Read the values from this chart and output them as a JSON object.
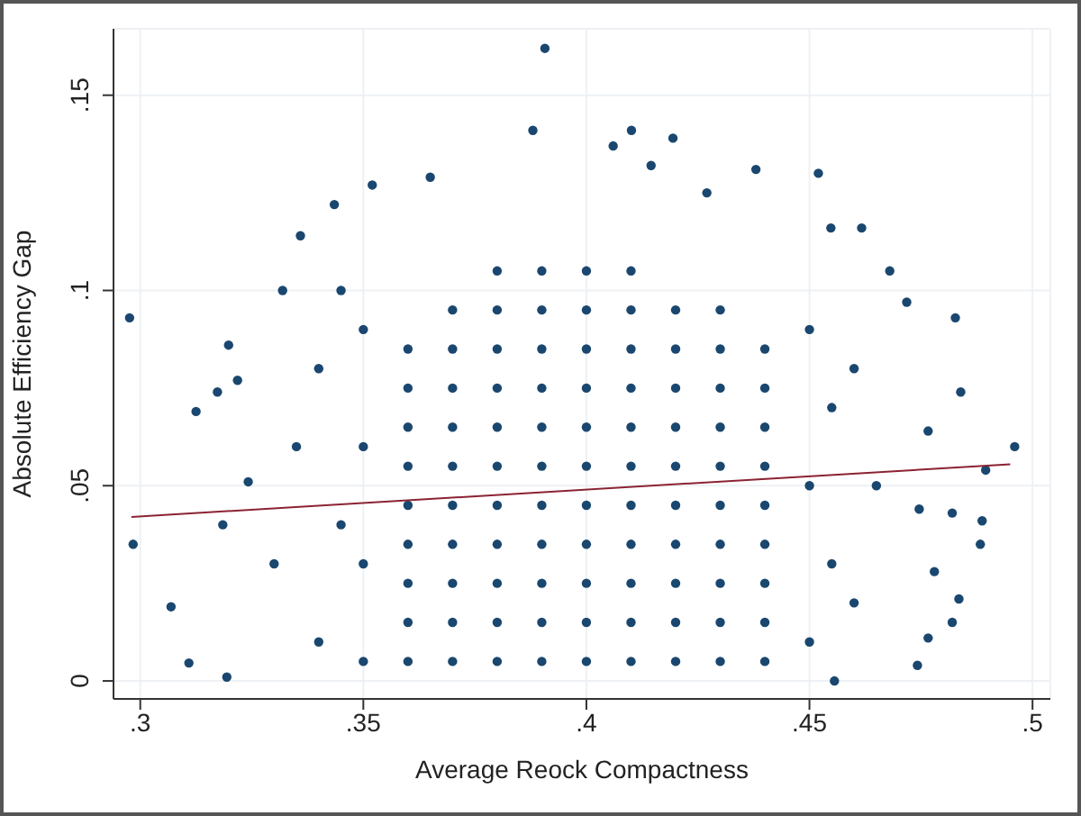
{
  "chart_data": {
    "type": "scatter",
    "xlabel": "Average Reock Compactness",
    "ylabel": "Absolute Efficiency Gap",
    "xlim": [
      0.294,
      0.504
    ],
    "ylim": [
      -0.0046,
      0.167
    ],
    "xticks": [
      {
        "value": 0.3,
        "label": ".3"
      },
      {
        "value": 0.35,
        "label": ".35"
      },
      {
        "value": 0.4,
        "label": ".4"
      },
      {
        "value": 0.45,
        "label": ".45"
      },
      {
        "value": 0.5,
        "label": ".5"
      }
    ],
    "yticks": [
      0,
      {
        "value": 0.05,
        "label": ".05"
      },
      {
        "value": 0.1,
        "label": ".1"
      },
      {
        "value": 0.15,
        "label": ".15"
      }
    ],
    "grid": true,
    "legend": false,
    "marker": "circle",
    "series": [
      {
        "color": "#1a476f",
        "x": [
          0.2976,
          0.2984,
          0.3069,
          0.3109,
          0.3198,
          0.3173,
          0.3125,
          0.3185,
          0.3218,
          0.3194,
          0.3242,
          0.3319,
          0.3359,
          0.3435,
          0.352,
          0.365,
          0.388,
          0.3907,
          0.4101,
          0.4194,
          0.406,
          0.4145,
          0.438,
          0.452,
          0.427,
          0.4548,
          0.4617,
          0.468,
          0.4718,
          0.4827,
          0.4839,
          0.496,
          0.4895,
          0.4883,
          0.4887,
          0.482,
          0.4835,
          0.482,
          0.4742,
          0.4556,
          0.4766,
          0.478,
          0.4746,
          0.4766,
          0.33,
          0.335,
          0.34,
          0.34,
          0.345,
          0.345,
          0.35,
          0.35,
          0.35,
          0.35,
          0.45,
          0.45,
          0.45,
          0.455,
          0.455,
          0.46,
          0.46,
          0.465,
          0.36,
          0.36,
          0.36,
          0.36,
          0.36,
          0.36,
          0.36,
          0.36,
          0.36,
          0.37,
          0.37,
          0.37,
          0.37,
          0.37,
          0.37,
          0.37,
          0.37,
          0.37,
          0.37,
          0.38,
          0.38,
          0.38,
          0.38,
          0.38,
          0.38,
          0.38,
          0.38,
          0.38,
          0.38,
          0.38,
          0.39,
          0.39,
          0.39,
          0.39,
          0.39,
          0.39,
          0.39,
          0.39,
          0.39,
          0.39,
          0.39,
          0.4,
          0.4,
          0.4,
          0.4,
          0.4,
          0.4,
          0.4,
          0.4,
          0.4,
          0.4,
          0.4,
          0.41,
          0.41,
          0.41,
          0.41,
          0.41,
          0.41,
          0.41,
          0.41,
          0.41,
          0.41,
          0.41,
          0.42,
          0.42,
          0.42,
          0.42,
          0.42,
          0.42,
          0.42,
          0.42,
          0.42,
          0.42,
          0.43,
          0.43,
          0.43,
          0.43,
          0.43,
          0.43,
          0.43,
          0.43,
          0.43,
          0.43,
          0.44,
          0.44,
          0.44,
          0.44,
          0.44,
          0.44,
          0.44,
          0.44,
          0.44
        ],
        "values": [
          0.093,
          0.035,
          0.019,
          0.0046,
          0.086,
          0.074,
          0.069,
          0.04,
          0.077,
          0.001,
          0.051,
          0.1,
          0.114,
          0.122,
          0.127,
          0.129,
          0.141,
          0.162,
          0.141,
          0.139,
          0.137,
          0.132,
          0.131,
          0.13,
          0.125,
          0.116,
          0.116,
          0.105,
          0.097,
          0.093,
          0.074,
          0.06,
          0.054,
          0.035,
          0.041,
          0.043,
          0.021,
          0.015,
          0.004,
          0.0,
          0.011,
          0.028,
          0.044,
          0.064,
          0.03,
          0.06,
          0.01,
          0.08,
          0.04,
          0.1,
          0.005,
          0.03,
          0.06,
          0.09,
          0.01,
          0.05,
          0.09,
          0.03,
          0.07,
          0.02,
          0.08,
          0.05,
          0.005,
          0.015,
          0.025,
          0.035,
          0.045,
          0.055,
          0.065,
          0.075,
          0.085,
          0.005,
          0.015,
          0.025,
          0.035,
          0.045,
          0.055,
          0.065,
          0.075,
          0.085,
          0.095,
          0.005,
          0.015,
          0.025,
          0.035,
          0.045,
          0.055,
          0.065,
          0.075,
          0.085,
          0.095,
          0.105,
          0.005,
          0.015,
          0.025,
          0.035,
          0.045,
          0.055,
          0.065,
          0.075,
          0.085,
          0.095,
          0.105,
          0.005,
          0.015,
          0.025,
          0.035,
          0.045,
          0.055,
          0.065,
          0.075,
          0.085,
          0.095,
          0.105,
          0.005,
          0.015,
          0.025,
          0.035,
          0.045,
          0.055,
          0.065,
          0.075,
          0.085,
          0.095,
          0.105,
          0.005,
          0.015,
          0.025,
          0.035,
          0.045,
          0.055,
          0.065,
          0.075,
          0.085,
          0.095,
          0.005,
          0.015,
          0.025,
          0.035,
          0.045,
          0.055,
          0.065,
          0.075,
          0.085,
          0.095,
          0.005,
          0.015,
          0.025,
          0.035,
          0.045,
          0.055,
          0.065,
          0.075,
          0.085
        ]
      },
      {
        "type": "line",
        "color": "#8b2332",
        "marker": "none",
        "x": [
          0.298,
          0.495
        ],
        "values": [
          0.042,
          0.0555
        ]
      }
    ]
  }
}
